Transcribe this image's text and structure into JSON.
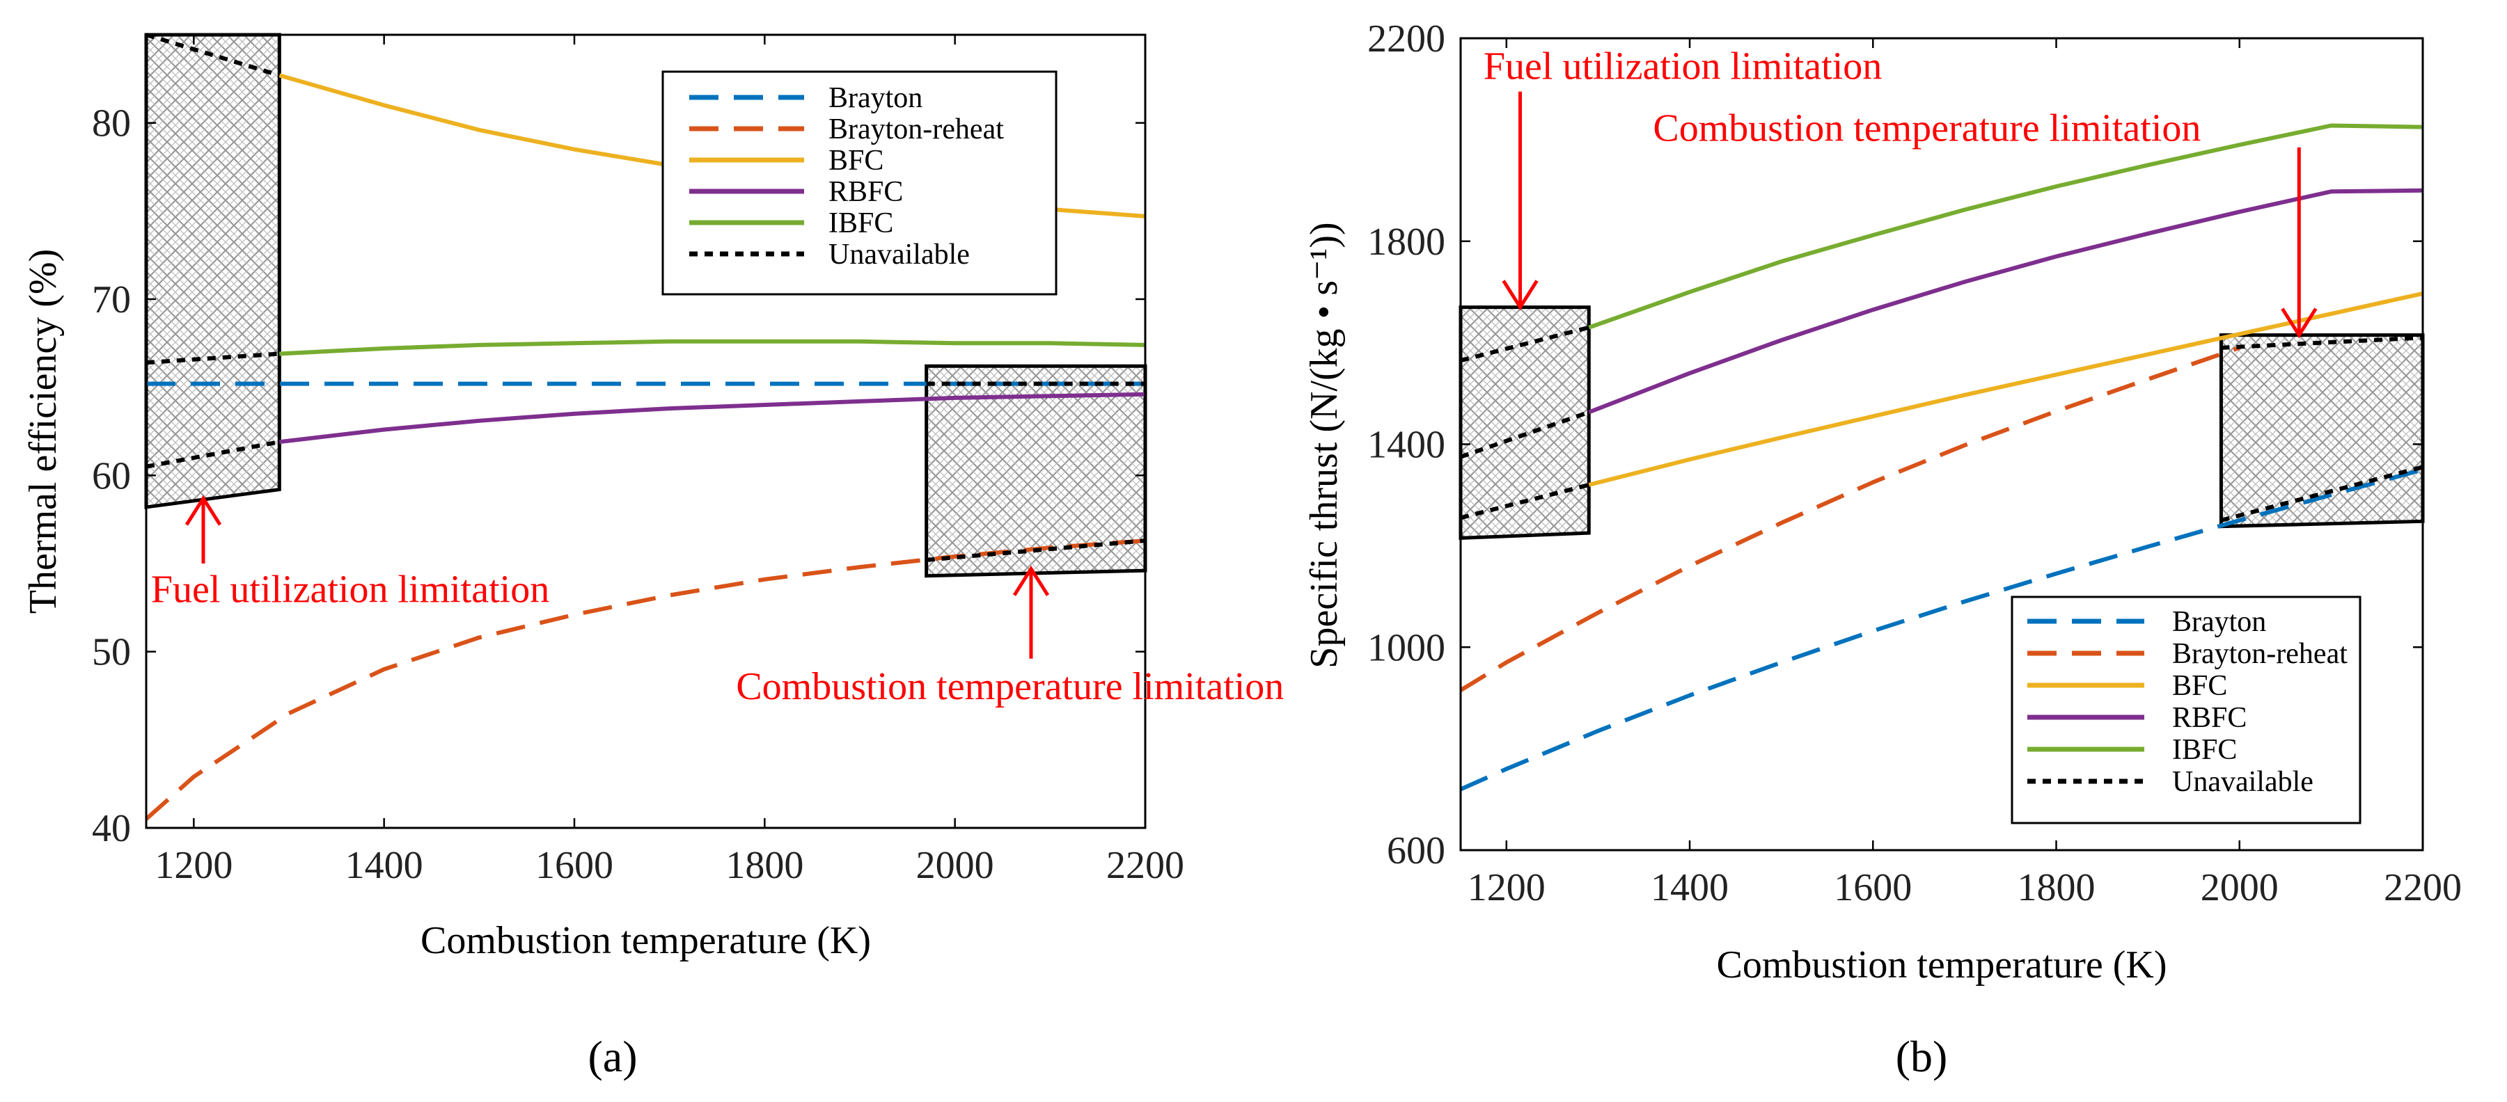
{
  "chart_data": [
    {
      "type": "line",
      "panel_label": "(a)",
      "xlabel": "Combustion temperature (K)",
      "ylabel": "Thermal efficiency (%)",
      "xlim": [
        1150,
        2200
      ],
      "ylim": [
        40,
        85
      ],
      "xticks": [
        1200,
        1400,
        1600,
        1800,
        2000,
        2200
      ],
      "yticks": [
        40,
        50,
        60,
        70,
        80
      ],
      "grid": false,
      "legend_position": "top-right",
      "series": [
        {
          "name": "Brayton",
          "style": "dashed",
          "color": "#0072BD",
          "x": [
            1150,
            2200
          ],
          "y": [
            65.2,
            65.2
          ]
        },
        {
          "name": "Brayton-reheat",
          "style": "dashed",
          "color": "#D95319",
          "x": [
            1150,
            1200,
            1300,
            1400,
            1500,
            1600,
            1700,
            1800,
            1900,
            2000,
            2100,
            2200
          ],
          "y": [
            40.5,
            42.9,
            46.5,
            49.0,
            50.8,
            52.1,
            53.2,
            54.1,
            54.8,
            55.4,
            55.9,
            56.3
          ]
        },
        {
          "name": "BFC",
          "style": "solid",
          "color": "#EDB120",
          "x": [
            1290,
            1400,
            1500,
            1600,
            1700,
            1800,
            1900,
            2000,
            2100,
            2200
          ],
          "y": [
            82.7,
            81.0,
            79.6,
            78.5,
            77.6,
            76.9,
            76.2,
            75.6,
            75.1,
            74.7
          ]
        },
        {
          "name": "RBFC",
          "style": "solid",
          "color": "#7E2F8E",
          "x": [
            1290,
            1400,
            1500,
            1600,
            1700,
            1800,
            1900,
            2000,
            2100,
            2200
          ],
          "y": [
            61.9,
            62.6,
            63.1,
            63.5,
            63.8,
            64.0,
            64.2,
            64.4,
            64.5,
            64.6
          ]
        },
        {
          "name": "IBFC",
          "style": "solid",
          "color": "#77AC30",
          "x": [
            1290,
            1400,
            1500,
            1600,
            1700,
            1800,
            1900,
            2000,
            2100,
            2200
          ],
          "y": [
            66.9,
            67.2,
            67.4,
            67.5,
            67.6,
            67.6,
            67.6,
            67.5,
            67.5,
            67.4
          ]
        },
        {
          "name": "Unavailable",
          "style": "dotted",
          "color": "#000000",
          "segments": [
            {
              "x": [
                1150,
                1290
              ],
              "y": [
                85.0,
                82.7
              ]
            },
            {
              "x": [
                1150,
                1290
              ],
              "y": [
                66.4,
                66.9
              ]
            },
            {
              "x": [
                1150,
                1290
              ],
              "y": [
                60.5,
                61.9
              ]
            },
            {
              "x": [
                1970,
                2200
              ],
              "y": [
                65.2,
                65.2
              ]
            },
            {
              "x": [
                1970,
                2200
              ],
              "y": [
                55.2,
                56.3
              ]
            }
          ]
        }
      ],
      "regions": [
        {
          "name": "fuel-limit-region",
          "x1": 1150,
          "x2": 1290,
          "y_left": [
            58.2,
            85.0
          ],
          "y_right": [
            59.2,
            85.0
          ]
        },
        {
          "name": "combustion-limit-region",
          "x1": 1970,
          "x2": 2200,
          "y_left": [
            54.3,
            66.2
          ],
          "y_right": [
            54.6,
            66.2
          ]
        }
      ],
      "annotations": [
        {
          "text": "Fuel utilization limitation",
          "x": 1155,
          "y": 52.8,
          "arrow_from": [
            1210,
            55.0
          ],
          "arrow_to": [
            1210,
            58.7
          ]
        },
        {
          "text": "Combustion temperature limitation",
          "x": 1770,
          "y": 47.3,
          "arrow_from": [
            2080,
            49.6
          ],
          "arrow_to": [
            2080,
            54.7
          ]
        }
      ]
    },
    {
      "type": "line",
      "panel_label": "(b)",
      "xlabel": "Combustion temperature (K)",
      "ylabel": "Specific thrust (N/(kg • s⁻¹))",
      "xlim": [
        1150,
        2200
      ],
      "ylim": [
        600,
        2200
      ],
      "xticks": [
        1200,
        1400,
        1600,
        1800,
        2000,
        2200
      ],
      "yticks": [
        600,
        1000,
        1400,
        1800,
        2200
      ],
      "grid": false,
      "legend_position": "bottom-right",
      "series": [
        {
          "name": "Brayton",
          "style": "dashed",
          "color": "#0072BD",
          "x": [
            1150,
            1200,
            1300,
            1400,
            1500,
            1600,
            1700,
            1800,
            1900,
            2000,
            2100,
            2200
          ],
          "y": [
            720,
            760,
            835,
            905,
            970,
            1032,
            1090,
            1145,
            1198,
            1250,
            1300,
            1350
          ]
        },
        {
          "name": "Brayton-reheat",
          "style": "dashed",
          "color": "#D95319",
          "x": [
            1150,
            1200,
            1300,
            1400,
            1500,
            1600,
            1700,
            1800,
            1900,
            2000
          ],
          "y": [
            915,
            970,
            1068,
            1160,
            1245,
            1325,
            1398,
            1465,
            1528,
            1590
          ]
        },
        {
          "name": "BFC",
          "style": "solid",
          "color": "#EDB120",
          "x": [
            1290,
            1400,
            1500,
            1600,
            1700,
            1800,
            1900,
            2000,
            2100,
            2200
          ],
          "y": [
            1320,
            1370,
            1413,
            1455,
            1497,
            1537,
            1577,
            1617,
            1657,
            1697
          ]
        },
        {
          "name": "RBFC",
          "style": "solid",
          "color": "#7E2F8E",
          "x": [
            1290,
            1400,
            1500,
            1600,
            1700,
            1800,
            1900,
            2000,
            2100,
            2200
          ],
          "y": [
            1463,
            1540,
            1605,
            1665,
            1720,
            1770,
            1815,
            1858,
            1898,
            1900
          ]
        },
        {
          "name": "IBFC",
          "style": "solid",
          "color": "#77AC30",
          "x": [
            1290,
            1400,
            1500,
            1600,
            1700,
            1800,
            1900,
            2000,
            2100,
            2200
          ],
          "y": [
            1630,
            1700,
            1760,
            1812,
            1862,
            1908,
            1950,
            1990,
            2028,
            2025
          ]
        },
        {
          "name": "Unavailable",
          "style": "dotted",
          "color": "#000000",
          "segments": [
            {
              "x": [
                1150,
                1290
              ],
              "y": [
                1565,
                1630
              ]
            },
            {
              "x": [
                1150,
                1290
              ],
              "y": [
                1375,
                1463
              ]
            },
            {
              "x": [
                1150,
                1290
              ],
              "y": [
                1255,
                1320
              ]
            },
            {
              "x": [
                1980,
                2200
              ],
              "y": [
                1590,
                1610
              ]
            },
            {
              "x": [
                1980,
                2200
              ],
              "y": [
                1250,
                1355
              ]
            }
          ]
        }
      ],
      "regions": [
        {
          "name": "fuel-limit-region",
          "x1": 1150,
          "x2": 1290,
          "y_left": [
            1215,
            1670
          ],
          "y_right": [
            1225,
            1670
          ]
        },
        {
          "name": "combustion-limit-region",
          "x1": 1980,
          "x2": 2200,
          "y_left": [
            1238,
            1615
          ],
          "y_right": [
            1248,
            1615
          ]
        }
      ],
      "annotations": [
        {
          "text": "Fuel utilization limitation",
          "x": 1175,
          "y": 2120,
          "arrow_from": [
            1215,
            2095
          ],
          "arrow_to": [
            1215,
            1670
          ]
        },
        {
          "text": "Combustion temperature limitation",
          "x": 1360,
          "y": 1998,
          "arrow_from": [
            2065,
            1985
          ],
          "arrow_to": [
            2065,
            1615
          ]
        }
      ]
    }
  ]
}
